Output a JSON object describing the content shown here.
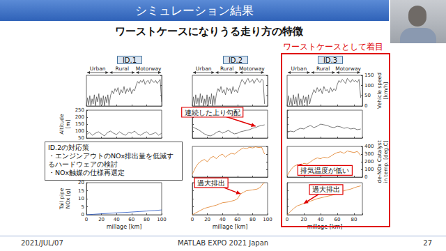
{
  "slide": {
    "title": "シミュレーション結果",
    "subtitle": "ワーストケースになりうる走り方の特徴",
    "focus_label": "ワーストケースとして着目",
    "note": {
      "title": "ID.2の対応策",
      "items": [
        "・エンジンアウトのNOx排出量を低減するハードウェアの検討",
        "・NOx触媒の仕様再選定"
      ]
    },
    "footer": {
      "date": "2021/JUL/07",
      "event": "MATLAB EXPO 2021 Japan",
      "page": 27
    }
  },
  "chart_data": {
    "type": "line",
    "xlabel": "millage [km]",
    "rows": [
      {
        "ylabel": "Vehicle speed\n[km/h]",
        "ylim": [
          0,
          150
        ],
        "yticks": [
          0,
          50,
          100,
          150
        ]
      },
      {
        "ylabel": "Altitude\n[m]",
        "ylim": [
          50,
          250
        ],
        "yticks": [
          50,
          100,
          150,
          200,
          250
        ]
      },
      {
        "ylabel": "de-NOx Catalyst\nin temp. [deg.C]",
        "ylim": [
          0,
          400
        ],
        "yticks": [
          0,
          100,
          200,
          300,
          400
        ]
      },
      {
        "ylabel": "Tail pipe\nNOx [g]",
        "ylim": [
          0,
          20
        ],
        "yticks": [
          0,
          5,
          10,
          15,
          20
        ]
      }
    ],
    "columns": [
      {
        "title": "ID.1",
        "xlim": [
          0,
          100
        ],
        "xticks": [
          0,
          20,
          40,
          60,
          80,
          100
        ],
        "annotations": [
          {
            "text": "Urban",
            "x": [
              0,
              30
            ]
          },
          {
            "text": "Rural",
            "x": [
              30,
              65
            ]
          },
          {
            "text": "Motorway",
            "x": [
              65,
              100
            ]
          }
        ],
        "panels": [
          {
            "color": "#555555",
            "x": [
              0,
              1.5,
              3,
              4.5,
              6,
              7.5,
              9,
              10.5,
              12,
              13.5,
              15,
              16.5,
              18,
              19.5,
              21,
              22.5,
              24,
              25.5,
              27,
              28.5,
              30,
              32,
              34,
              36,
              38,
              40,
              42,
              44,
              46,
              48,
              50,
              52,
              54,
              56,
              58,
              60,
              62,
              64,
              66,
              68,
              70,
              72,
              74,
              76,
              78,
              80,
              82,
              84,
              86,
              88,
              90,
              92,
              94,
              96,
              98,
              100
            ],
            "values": [
              0,
              40,
              5,
              50,
              0,
              35,
              10,
              55,
              0,
              45,
              20,
              60,
              0,
              40,
              5,
              50,
              0,
              45,
              15,
              55,
              0,
              50,
              75,
              60,
              85,
              70,
              90,
              55,
              80,
              65,
              95,
              60,
              85,
              70,
              90,
              60,
              80,
              75,
              100,
              120,
              110,
              125,
              115,
              130,
              105,
              120,
              125,
              110,
              130,
              120,
              115,
              125,
              110,
              120,
              130,
              20
            ]
          },
          {
            "color": "#555555",
            "x": [
              0,
              4,
              8,
              12,
              16,
              20,
              24,
              28,
              32,
              36,
              40,
              44,
              48,
              52,
              56,
              60,
              64,
              68,
              72,
              76,
              80,
              84,
              88,
              92,
              96,
              100
            ],
            "values": [
              75,
              90,
              70,
              85,
              95,
              80,
              65,
              90,
              100,
              85,
              75,
              95,
              80,
              70,
              90,
              85,
              100,
              80,
              70,
              85,
              95,
              75,
              80,
              90,
              70,
              85
            ]
          },
          null,
          {
            "color": "#2050c0",
            "x": [
              0,
              10,
              20,
              30,
              40,
              50,
              60,
              70,
              80,
              90,
              100
            ],
            "values": [
              0,
              0.3,
              0.6,
              0.9,
              1.2,
              1.4,
              1.7,
              2.0,
              2.3,
              2.6,
              3.0
            ]
          }
        ]
      },
      {
        "title": "ID.2",
        "xlim": [
          0,
          100
        ],
        "xticks": [
          0,
          20,
          40,
          60,
          80,
          100
        ],
        "annotations": [
          {
            "text": "Urban",
            "x": [
              0,
              30
            ]
          },
          {
            "text": "Rural",
            "x": [
              30,
              62
            ]
          },
          {
            "text": "Motorway",
            "x": [
              62,
              96
            ]
          }
        ],
        "panels": [
          {
            "color": "#555555",
            "x": [
              0,
              1.5,
              3,
              4.5,
              6,
              7.5,
              9,
              10.5,
              12,
              13.5,
              15,
              16.5,
              18,
              19.5,
              21,
              22.5,
              24,
              25.5,
              27,
              28.5,
              30,
              32,
              34,
              36,
              38,
              40,
              42,
              44,
              46,
              48,
              50,
              52,
              54,
              56,
              58,
              60,
              62,
              64,
              66,
              68,
              70,
              72,
              74,
              76,
              78,
              80,
              82,
              84,
              86,
              88,
              90,
              92,
              94,
              96
            ],
            "values": [
              0,
              45,
              0,
              55,
              10,
              40,
              0,
              60,
              15,
              50,
              0,
              35,
              5,
              55,
              0,
              45,
              10,
              60,
              0,
              50,
              5,
              60,
              85,
              70,
              95,
              65,
              80,
              55,
              90,
              75,
              85,
              60,
              95,
              70,
              80,
              65,
              90,
              110,
              130,
              120,
              105,
              125,
              135,
              115,
              120,
              130,
              110,
              125,
              135,
              120,
              115,
              130,
              125,
              10
            ]
          },
          {
            "color": "#555555",
            "x": [
              0,
              4,
              8,
              12,
              16,
              20,
              24,
              28,
              32,
              36,
              40,
              44,
              48,
              52,
              56,
              60,
              64,
              68,
              72,
              76,
              80,
              84,
              88,
              92,
              96
            ],
            "values": [
              130,
              120,
              110,
              95,
              80,
              70,
              65,
              75,
              90,
              100,
              85,
              95,
              105,
              90,
              80,
              85,
              95,
              100,
              105,
              110,
              120,
              125,
              135,
              140,
              145
            ],
            "annotations": [
              {
                "text": "連続した上り勾配",
                "x": 84,
                "y": 135
              }
            ]
          },
          {
            "color": "#e07b20",
            "x": [
              0,
              4,
              8,
              12,
              16,
              20,
              24,
              28,
              32,
              36,
              40,
              44,
              48,
              52,
              56,
              60,
              64,
              68,
              72,
              76,
              80,
              84,
              88,
              92,
              96
            ],
            "values": [
              40,
              120,
              180,
              210,
              230,
              200,
              250,
              270,
              240,
              280,
              300,
              260,
              290,
              310,
              300,
              330,
              360,
              380,
              370,
              390,
              380,
              395,
              385,
              390,
              300
            ]
          },
          {
            "color": "#e07b20",
            "x": [
              0,
              8,
              16,
              24,
              32,
              40,
              48,
              56,
              60,
              64,
              68,
              72,
              80,
              86,
              90,
              94,
              96
            ],
            "values": [
              0,
              2,
              4,
              5,
              6,
              7.5,
              8,
              9,
              10,
              13,
              14,
              15,
              15.5,
              16,
              17,
              19.5,
              20
            ],
            "annotations": [
              {
                "text": "過大排出",
                "x": 64,
                "y": 13
              }
            ]
          }
        ]
      },
      {
        "title": "ID.3",
        "xlim": [
          0,
          90
        ],
        "xticks": [
          0,
          20,
          40,
          60,
          80
        ],
        "annotations": [
          {
            "text": "Urban",
            "x": [
              0,
              28
            ]
          },
          {
            "text": "Rural",
            "x": [
              28,
              58
            ]
          },
          {
            "text": "Motorway",
            "x": [
              58,
              88
            ]
          }
        ],
        "panels": [
          {
            "color": "#555555",
            "x": [
              0,
              1.5,
              3,
              4.5,
              6,
              7.5,
              9,
              10.5,
              12,
              13.5,
              15,
              16.5,
              18,
              19.5,
              21,
              22.5,
              24,
              25.5,
              27,
              28.5,
              30,
              32,
              34,
              36,
              38,
              40,
              42,
              44,
              46,
              48,
              50,
              52,
              54,
              56,
              58,
              60,
              62,
              64,
              66,
              68,
              70,
              72,
              74,
              76,
              78,
              80,
              82,
              84,
              86,
              88
            ],
            "values": [
              0,
              50,
              5,
              40,
              0,
              55,
              10,
              45,
              0,
              60,
              5,
              35,
              0,
              50,
              15,
              45,
              0,
              55,
              10,
              40,
              55,
              80,
              65,
              90,
              70,
              85,
              60,
              95,
              75,
              80,
              65,
              90,
              70,
              85,
              75,
              105,
              125,
              115,
              130,
              120,
              110,
              135,
              125,
              115,
              130,
              120,
              125,
              115,
              130,
              40
            ]
          },
          {
            "color": "#555555",
            "x": [
              0,
              4,
              8,
              12,
              16,
              20,
              24,
              28,
              32,
              36,
              40,
              44,
              48,
              52,
              56,
              60,
              64,
              68,
              72,
              76,
              80,
              84,
              88
            ],
            "values": [
              90,
              100,
              95,
              110,
              120,
              115,
              130,
              140,
              125,
              135,
              150,
              145,
              140,
              130,
              125,
              135,
              130,
              120,
              125,
              115,
              120,
              110,
              115
            ]
          },
          {
            "color": "#e07b20",
            "x": [
              0,
              4,
              8,
              12,
              16,
              20,
              24,
              28,
              32,
              36,
              40,
              44,
              48,
              52,
              56,
              60,
              64,
              68,
              72,
              76,
              80,
              84,
              88
            ],
            "values": [
              20,
              90,
              140,
              160,
              150,
              180,
              170,
              200,
              230,
              250,
              240,
              260,
              250,
              270,
              300,
              320,
              330,
              310,
              340,
              330,
              320,
              335,
              280
            ],
            "annotations": [
              {
                "text": "排気温度が低い",
                "x": 12,
                "y": 160
              }
            ]
          },
          {
            "color": "#e07b20",
            "x": [
              0,
              4,
              8,
              12,
              20,
              28,
              36,
              44,
              52,
              60,
              68,
              76,
              84,
              88
            ],
            "values": [
              0,
              2,
              4,
              5.5,
              7,
              8.5,
              10,
              11,
              12,
              13,
              15,
              16,
              17.5,
              18
            ],
            "annotations": [
              {
                "text": "過大排出",
                "x": 20,
                "y": 7
              }
            ]
          }
        ]
      }
    ]
  }
}
